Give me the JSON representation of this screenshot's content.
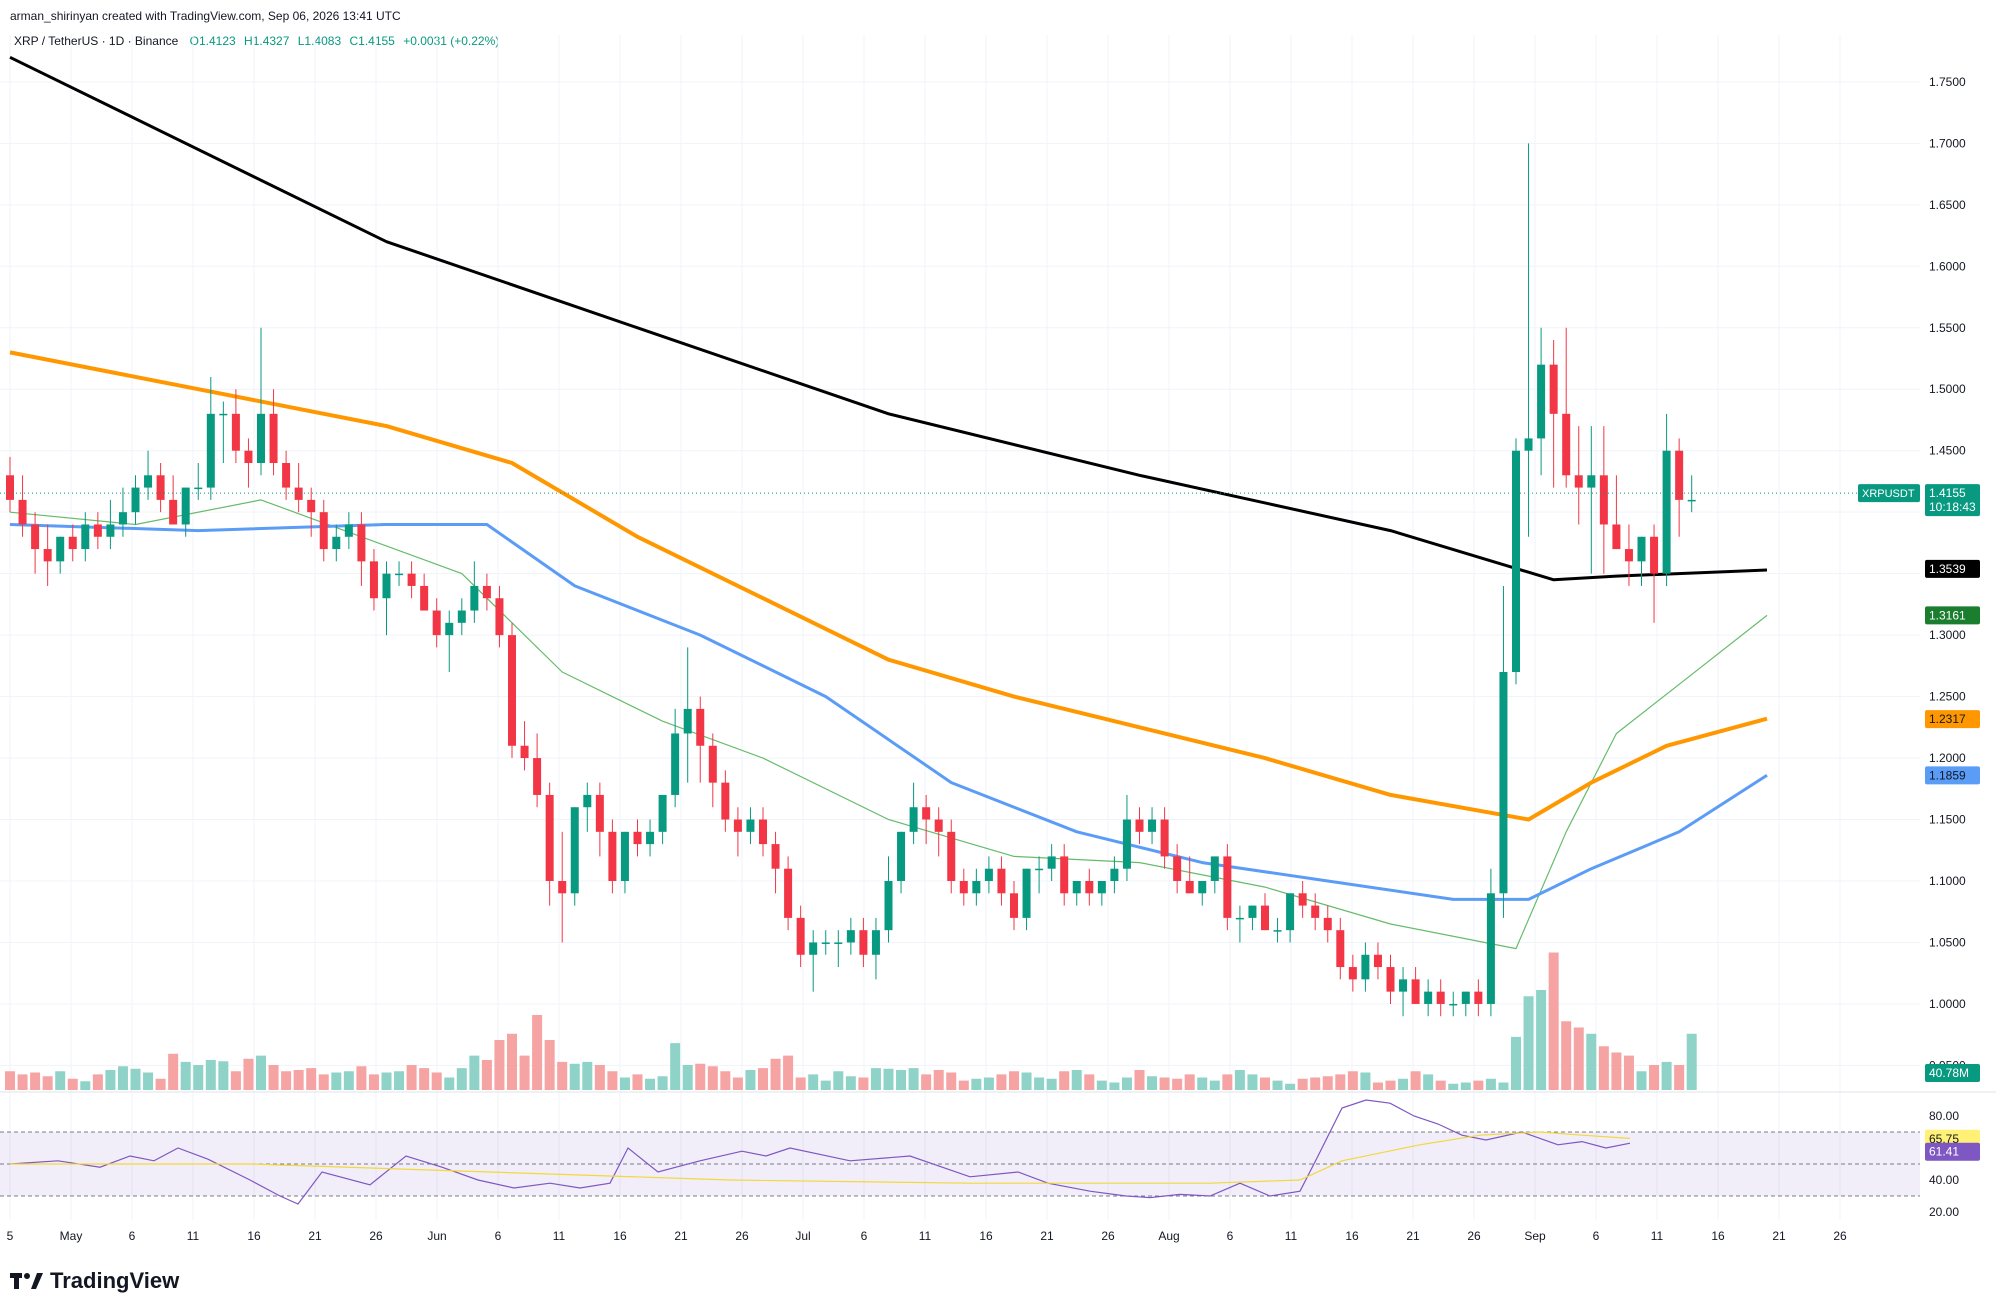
{
  "header": {
    "created_by": "arman_shirinyan created with TradingView.com, Sep 06, 2026 13:41 UTC"
  },
  "legend": {
    "symbol": "XRP / TetherUS · 1D · Binance",
    "open": "O1.4123",
    "high": "H1.4327",
    "low": "L1.4083",
    "close": "C1.4155",
    "change": "+0.0031 (+0.22%)"
  },
  "footer": {
    "brand": "TradingView",
    "logo_icon": "tradingview-logo-icon"
  },
  "colors": {
    "up": "#089981",
    "down": "#f23645",
    "vol_up": "#8fd3c8",
    "vol_down": "#f5a3a3",
    "ma_black": "#000000",
    "ma_orange": "#ff9800",
    "ma_blue": "#5b9cf6",
    "ma_green": "#66bb6a",
    "rsi": "#7e57c2",
    "rsi_ma": "#ffeb3b",
    "grid": "#f0f3fa"
  },
  "chart_data": {
    "type": "candlestick",
    "symbol": "XRPUSDT",
    "price_labels": {
      "last": {
        "name": "XRPUSDT",
        "value": "1.4155",
        "countdown": "10:18:43"
      },
      "ma_black": "1.3539",
      "ma_green": "1.3161",
      "ma_orange": "1.2317",
      "ma_blue": "1.1859",
      "volume": "40.78M"
    },
    "y_ticks": [
      "1.7500",
      "1.7000",
      "1.6500",
      "1.6000",
      "1.5500",
      "1.5000",
      "1.4500",
      "1.4000",
      "1.3500",
      "1.3000",
      "1.2500",
      "1.2000",
      "1.1500",
      "1.1000",
      "1.0500",
      "1.0000",
      "0.9500"
    ],
    "x_ticks": [
      "5",
      "May",
      "6",
      "11",
      "16",
      "21",
      "26",
      "Jun",
      "6",
      "11",
      "16",
      "21",
      "26",
      "Jul",
      "6",
      "11",
      "16",
      "21",
      "26",
      "Aug",
      "6",
      "11",
      "16",
      "21",
      "26",
      "Sep",
      "6",
      "11",
      "16",
      "21",
      "26"
    ],
    "ylim": [
      0.93,
      1.78
    ],
    "candles": [
      [
        1.43,
        1.445,
        1.4,
        1.41
      ],
      [
        1.41,
        1.43,
        1.38,
        1.39
      ],
      [
        1.39,
        1.4,
        1.35,
        1.37
      ],
      [
        1.37,
        1.39,
        1.34,
        1.36
      ],
      [
        1.36,
        1.38,
        1.35,
        1.38
      ],
      [
        1.38,
        1.39,
        1.36,
        1.37
      ],
      [
        1.37,
        1.4,
        1.36,
        1.39
      ],
      [
        1.39,
        1.4,
        1.37,
        1.38
      ],
      [
        1.38,
        1.41,
        1.37,
        1.39
      ],
      [
        1.39,
        1.42,
        1.38,
        1.4
      ],
      [
        1.4,
        1.43,
        1.39,
        1.42
      ],
      [
        1.42,
        1.45,
        1.41,
        1.43
      ],
      [
        1.43,
        1.44,
        1.4,
        1.41
      ],
      [
        1.41,
        1.43,
        1.39,
        1.39
      ],
      [
        1.39,
        1.42,
        1.38,
        1.42
      ],
      [
        1.42,
        1.44,
        1.41,
        1.42
      ],
      [
        1.42,
        1.51,
        1.41,
        1.48
      ],
      [
        1.48,
        1.49,
        1.44,
        1.48
      ],
      [
        1.48,
        1.5,
        1.44,
        1.45
      ],
      [
        1.45,
        1.46,
        1.42,
        1.44
      ],
      [
        1.44,
        1.55,
        1.43,
        1.48
      ],
      [
        1.48,
        1.5,
        1.43,
        1.44
      ],
      [
        1.44,
        1.45,
        1.41,
        1.42
      ],
      [
        1.42,
        1.44,
        1.4,
        1.41
      ],
      [
        1.41,
        1.42,
        1.38,
        1.4
      ],
      [
        1.4,
        1.41,
        1.36,
        1.37
      ],
      [
        1.37,
        1.39,
        1.36,
        1.38
      ],
      [
        1.38,
        1.4,
        1.37,
        1.39
      ],
      [
        1.39,
        1.4,
        1.34,
        1.36
      ],
      [
        1.36,
        1.37,
        1.32,
        1.33
      ],
      [
        1.33,
        1.36,
        1.3,
        1.35
      ],
      [
        1.35,
        1.36,
        1.34,
        1.35
      ],
      [
        1.35,
        1.36,
        1.33,
        1.34
      ],
      [
        1.34,
        1.35,
        1.32,
        1.32
      ],
      [
        1.32,
        1.33,
        1.29,
        1.3
      ],
      [
        1.3,
        1.32,
        1.27,
        1.31
      ],
      [
        1.31,
        1.33,
        1.3,
        1.32
      ],
      [
        1.32,
        1.36,
        1.31,
        1.34
      ],
      [
        1.34,
        1.35,
        1.32,
        1.33
      ],
      [
        1.33,
        1.34,
        1.29,
        1.3
      ],
      [
        1.3,
        1.31,
        1.2,
        1.21
      ],
      [
        1.21,
        1.23,
        1.19,
        1.2
      ],
      [
        1.2,
        1.22,
        1.16,
        1.17
      ],
      [
        1.17,
        1.18,
        1.08,
        1.1
      ],
      [
        1.1,
        1.14,
        1.05,
        1.09
      ],
      [
        1.09,
        1.16,
        1.08,
        1.16
      ],
      [
        1.16,
        1.18,
        1.14,
        1.17
      ],
      [
        1.17,
        1.18,
        1.12,
        1.14
      ],
      [
        1.14,
        1.15,
        1.09,
        1.1
      ],
      [
        1.1,
        1.14,
        1.09,
        1.14
      ],
      [
        1.14,
        1.15,
        1.12,
        1.13
      ],
      [
        1.13,
        1.15,
        1.12,
        1.14
      ],
      [
        1.14,
        1.17,
        1.13,
        1.17
      ],
      [
        1.17,
        1.24,
        1.16,
        1.22
      ],
      [
        1.22,
        1.29,
        1.18,
        1.24
      ],
      [
        1.24,
        1.25,
        1.18,
        1.21
      ],
      [
        1.21,
        1.22,
        1.16,
        1.18
      ],
      [
        1.18,
        1.19,
        1.14,
        1.15
      ],
      [
        1.15,
        1.16,
        1.12,
        1.14
      ],
      [
        1.14,
        1.16,
        1.13,
        1.15
      ],
      [
        1.15,
        1.16,
        1.12,
        1.13
      ],
      [
        1.13,
        1.14,
        1.09,
        1.11
      ],
      [
        1.11,
        1.12,
        1.06,
        1.07
      ],
      [
        1.07,
        1.08,
        1.03,
        1.04
      ],
      [
        1.04,
        1.06,
        1.01,
        1.05
      ],
      [
        1.05,
        1.06,
        1.04,
        1.05
      ],
      [
        1.05,
        1.06,
        1.03,
        1.05
      ],
      [
        1.05,
        1.07,
        1.04,
        1.06
      ],
      [
        1.06,
        1.07,
        1.03,
        1.04
      ],
      [
        1.04,
        1.07,
        1.02,
        1.06
      ],
      [
        1.06,
        1.12,
        1.05,
        1.1
      ],
      [
        1.1,
        1.14,
        1.09,
        1.14
      ],
      [
        1.14,
        1.18,
        1.13,
        1.16
      ],
      [
        1.16,
        1.17,
        1.13,
        1.15
      ],
      [
        1.15,
        1.16,
        1.12,
        1.14
      ],
      [
        1.14,
        1.15,
        1.09,
        1.1
      ],
      [
        1.1,
        1.11,
        1.08,
        1.09
      ],
      [
        1.09,
        1.11,
        1.08,
        1.1
      ],
      [
        1.1,
        1.12,
        1.09,
        1.11
      ],
      [
        1.11,
        1.12,
        1.08,
        1.09
      ],
      [
        1.09,
        1.1,
        1.06,
        1.07
      ],
      [
        1.07,
        1.11,
        1.06,
        1.11
      ],
      [
        1.11,
        1.12,
        1.09,
        1.11
      ],
      [
        1.11,
        1.13,
        1.1,
        1.12
      ],
      [
        1.12,
        1.13,
        1.08,
        1.09
      ],
      [
        1.09,
        1.1,
        1.08,
        1.1
      ],
      [
        1.1,
        1.11,
        1.08,
        1.09
      ],
      [
        1.09,
        1.1,
        1.08,
        1.1
      ],
      [
        1.1,
        1.12,
        1.09,
        1.11
      ],
      [
        1.11,
        1.17,
        1.1,
        1.15
      ],
      [
        1.15,
        1.16,
        1.13,
        1.14
      ],
      [
        1.14,
        1.16,
        1.13,
        1.15
      ],
      [
        1.15,
        1.16,
        1.11,
        1.12
      ],
      [
        1.12,
        1.13,
        1.09,
        1.1
      ],
      [
        1.1,
        1.12,
        1.09,
        1.09
      ],
      [
        1.09,
        1.1,
        1.08,
        1.1
      ],
      [
        1.1,
        1.12,
        1.09,
        1.12
      ],
      [
        1.12,
        1.13,
        1.06,
        1.07
      ],
      [
        1.07,
        1.08,
        1.05,
        1.07
      ],
      [
        1.07,
        1.08,
        1.06,
        1.08
      ],
      [
        1.08,
        1.09,
        1.06,
        1.06
      ],
      [
        1.06,
        1.07,
        1.05,
        1.06
      ],
      [
        1.06,
        1.09,
        1.05,
        1.09
      ],
      [
        1.09,
        1.1,
        1.07,
        1.08
      ],
      [
        1.08,
        1.09,
        1.06,
        1.07
      ],
      [
        1.07,
        1.08,
        1.05,
        1.06
      ],
      [
        1.06,
        1.07,
        1.02,
        1.03
      ],
      [
        1.03,
        1.04,
        1.01,
        1.02
      ],
      [
        1.02,
        1.05,
        1.01,
        1.04
      ],
      [
        1.04,
        1.05,
        1.02,
        1.03
      ],
      [
        1.03,
        1.04,
        1.0,
        1.01
      ],
      [
        1.01,
        1.03,
        0.99,
        1.02
      ],
      [
        1.02,
        1.03,
        1.0,
        1.0
      ],
      [
        1.0,
        1.02,
        0.99,
        1.01
      ],
      [
        1.01,
        1.02,
        0.99,
        1.0
      ],
      [
        1.0,
        1.01,
        0.99,
        1.0
      ],
      [
        1.0,
        1.01,
        0.99,
        1.01
      ],
      [
        1.01,
        1.02,
        0.99,
        1.0
      ],
      [
        1.0,
        1.11,
        0.99,
        1.09
      ],
      [
        1.09,
        1.34,
        1.07,
        1.27
      ],
      [
        1.27,
        1.46,
        1.26,
        1.45
      ],
      [
        1.45,
        1.7,
        1.38,
        1.46
      ],
      [
        1.46,
        1.55,
        1.43,
        1.52
      ],
      [
        1.52,
        1.54,
        1.42,
        1.48
      ],
      [
        1.48,
        1.55,
        1.42,
        1.43
      ],
      [
        1.43,
        1.47,
        1.39,
        1.42
      ],
      [
        1.42,
        1.47,
        1.35,
        1.43
      ],
      [
        1.43,
        1.47,
        1.35,
        1.39
      ],
      [
        1.39,
        1.43,
        1.37,
        1.37
      ],
      [
        1.37,
        1.39,
        1.34,
        1.36
      ],
      [
        1.36,
        1.38,
        1.34,
        1.38
      ],
      [
        1.38,
        1.39,
        1.31,
        1.35
      ],
      [
        1.35,
        1.48,
        1.34,
        1.45
      ],
      [
        1.45,
        1.46,
        1.38,
        1.41
      ],
      [
        1.41,
        1.43,
        1.4,
        1.41
      ]
    ],
    "ma_black": [
      [
        0,
        1.77
      ],
      [
        30,
        1.62
      ],
      [
        50,
        1.55
      ],
      [
        70,
        1.48
      ],
      [
        90,
        1.43
      ],
      [
        110,
        1.385
      ],
      [
        123,
        1.345
      ],
      [
        128,
        1.348
      ],
      [
        140,
        1.353
      ]
    ],
    "ma_orange": [
      [
        0,
        1.53
      ],
      [
        15,
        1.5
      ],
      [
        30,
        1.47
      ],
      [
        40,
        1.44
      ],
      [
        50,
        1.38
      ],
      [
        60,
        1.33
      ],
      [
        70,
        1.28
      ],
      [
        80,
        1.25
      ],
      [
        90,
        1.225
      ],
      [
        100,
        1.2
      ],
      [
        110,
        1.17
      ],
      [
        121,
        1.15
      ],
      [
        126,
        1.18
      ],
      [
        132,
        1.21
      ],
      [
        140,
        1.232
      ]
    ],
    "ma_blue": [
      [
        0,
        1.39
      ],
      [
        15,
        1.385
      ],
      [
        30,
        1.39
      ],
      [
        38,
        1.39
      ],
      [
        45,
        1.34
      ],
      [
        55,
        1.3
      ],
      [
        65,
        1.25
      ],
      [
        75,
        1.18
      ],
      [
        85,
        1.14
      ],
      [
        95,
        1.115
      ],
      [
        105,
        1.1
      ],
      [
        115,
        1.085
      ],
      [
        121,
        1.085
      ],
      [
        126,
        1.11
      ],
      [
        133,
        1.14
      ],
      [
        140,
        1.186
      ]
    ],
    "ma_green": [
      [
        0,
        1.4
      ],
      [
        10,
        1.39
      ],
      [
        20,
        1.41
      ],
      [
        28,
        1.38
      ],
      [
        36,
        1.35
      ],
      [
        44,
        1.27
      ],
      [
        52,
        1.23
      ],
      [
        60,
        1.2
      ],
      [
        70,
        1.15
      ],
      [
        80,
        1.12
      ],
      [
        90,
        1.115
      ],
      [
        100,
        1.095
      ],
      [
        110,
        1.065
      ],
      [
        120,
        1.045
      ],
      [
        124,
        1.14
      ],
      [
        128,
        1.22
      ],
      [
        133,
        1.26
      ],
      [
        140,
        1.316
      ]
    ],
    "volume": [
      30,
      25,
      28,
      22,
      30,
      18,
      14,
      25,
      32,
      38,
      34,
      28,
      18,
      58,
      45,
      40,
      48,
      46,
      30,
      50,
      55,
      40,
      30,
      32,
      35,
      25,
      28,
      30,
      38,
      25,
      28,
      30,
      40,
      35,
      28,
      20,
      35,
      55,
      48,
      80,
      90,
      55,
      120,
      80,
      45,
      42,
      45,
      40,
      30,
      20,
      25,
      18,
      22,
      75,
      40,
      42,
      38,
      30,
      20,
      32,
      35,
      50,
      55,
      20,
      25,
      15,
      30,
      22,
      20,
      35,
      34,
      32,
      35,
      25,
      32,
      28,
      15,
      18,
      20,
      25,
      30,
      28,
      20,
      18,
      30,
      32,
      25,
      15,
      12,
      20,
      32,
      22,
      20,
      18,
      25,
      20,
      15,
      25,
      32,
      25,
      20,
      15,
      10,
      18,
      20,
      22,
      25,
      30,
      28,
      12,
      15,
      18,
      30,
      25,
      15,
      10,
      12,
      15,
      18,
      12,
      85,
      150,
      160,
      220,
      110,
      100,
      90,
      70,
      60,
      55,
      30,
      40,
      45,
      40,
      90,
      70,
      30
    ],
    "volume_ymax": 240,
    "rsi": {
      "levels": [
        80,
        65.75,
        61.41,
        40,
        20
      ],
      "level_labels": [
        "80.00",
        "65.75",
        "61.41",
        "40.00",
        "20.00"
      ],
      "band": [
        30,
        70
      ],
      "ylim": [
        15,
        90
      ],
      "values": [
        [
          0,
          50
        ],
        [
          8,
          52
        ],
        [
          15,
          48
        ],
        [
          20,
          55
        ],
        [
          24,
          52
        ],
        [
          28,
          60
        ],
        [
          33,
          53
        ],
        [
          40,
          40
        ],
        [
          45,
          30
        ],
        [
          48,
          25
        ],
        [
          52,
          45
        ],
        [
          60,
          37
        ],
        [
          66,
          55
        ],
        [
          72,
          48
        ],
        [
          78,
          40
        ],
        [
          84,
          35
        ],
        [
          90,
          38
        ],
        [
          95,
          35
        ],
        [
          100,
          38
        ],
        [
          103,
          60
        ],
        [
          108,
          45
        ],
        [
          115,
          52
        ],
        [
          122,
          58
        ],
        [
          126,
          55
        ],
        [
          130,
          60
        ],
        [
          140,
          52
        ],
        [
          150,
          55
        ],
        [
          160,
          42
        ],
        [
          168,
          45
        ],
        [
          173,
          38
        ],
        [
          180,
          33
        ],
        [
          186,
          30
        ],
        [
          190,
          29
        ],
        [
          195,
          31
        ],
        [
          200,
          30
        ],
        [
          205,
          38
        ],
        [
          210,
          30
        ],
        [
          215,
          33
        ],
        [
          218,
          55
        ],
        [
          222,
          85
        ],
        [
          226,
          90
        ],
        [
          230,
          88
        ],
        [
          234,
          80
        ],
        [
          238,
          75
        ],
        [
          242,
          68
        ],
        [
          246,
          65
        ],
        [
          252,
          70
        ],
        [
          258,
          62
        ],
        [
          262,
          64
        ],
        [
          266,
          60
        ],
        [
          270,
          63
        ]
      ],
      "ma_values": [
        [
          0,
          50
        ],
        [
          40,
          50
        ],
        [
          80,
          45
        ],
        [
          120,
          40
        ],
        [
          160,
          38
        ],
        [
          200,
          38
        ],
        [
          215,
          40
        ],
        [
          222,
          52
        ],
        [
          235,
          62
        ],
        [
          245,
          68
        ],
        [
          255,
          70
        ],
        [
          262,
          68
        ],
        [
          270,
          66
        ]
      ]
    }
  }
}
